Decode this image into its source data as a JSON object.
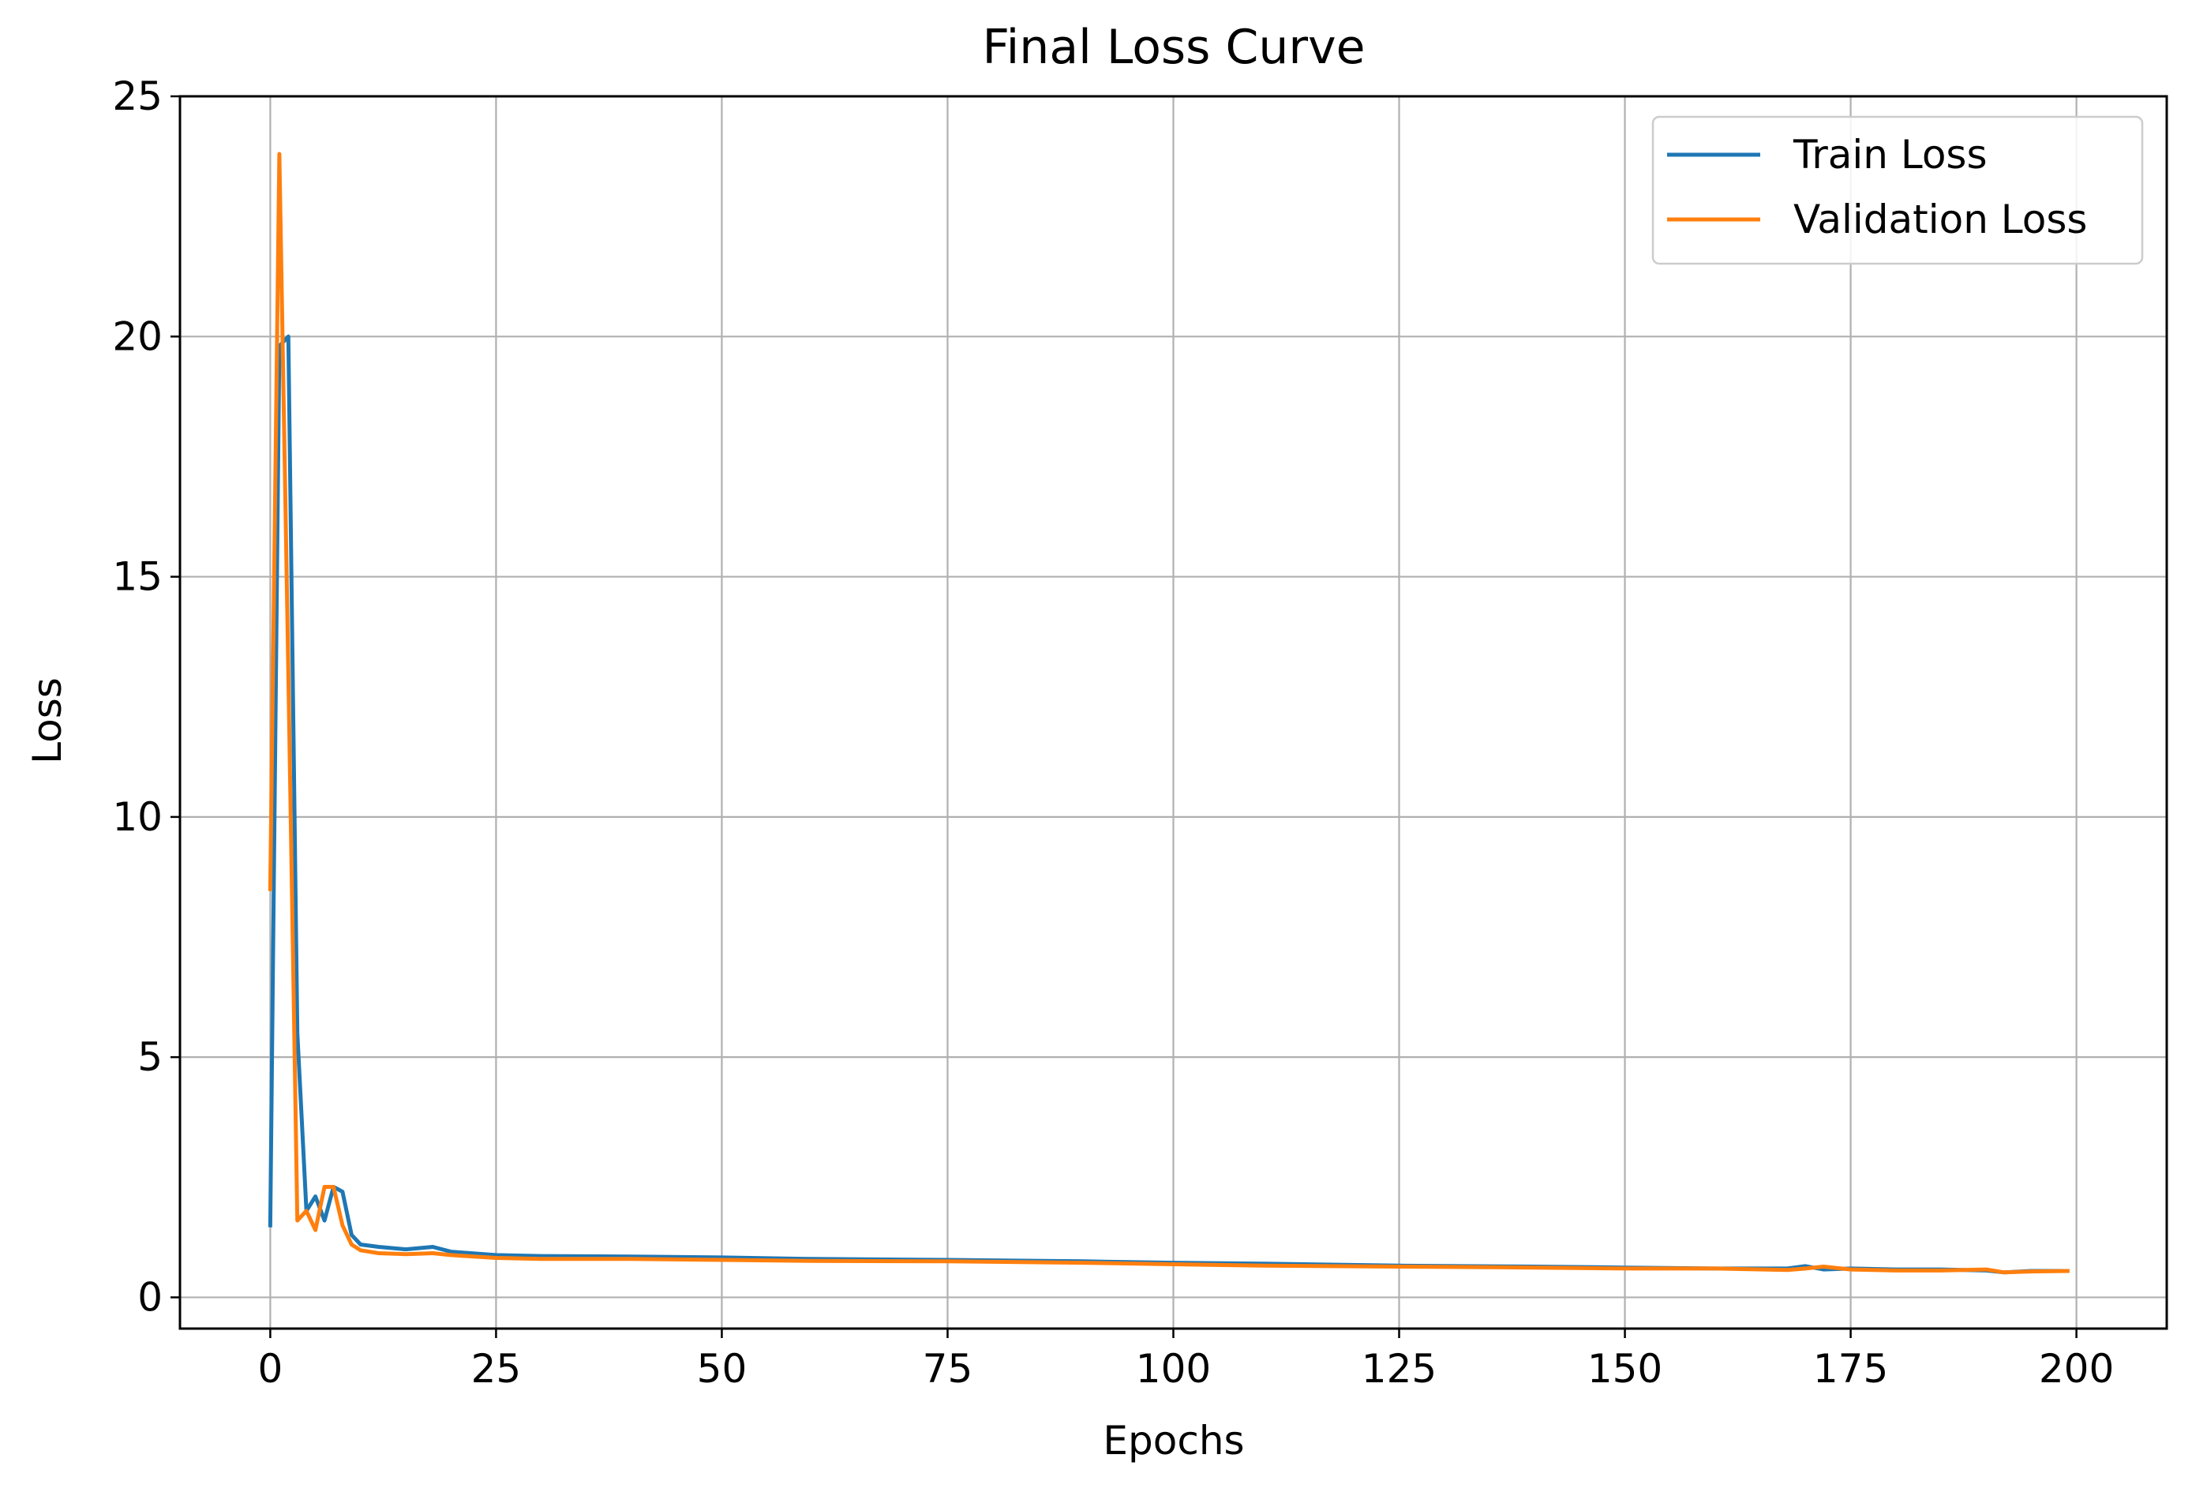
{
  "chart_data": {
    "type": "line",
    "title": "Final Loss Curve",
    "xlabel": "Epochs",
    "ylabel": "Loss",
    "xlim": [
      -10,
      210
    ],
    "ylim": [
      -0.65,
      25
    ],
    "xticks": [
      0,
      25,
      50,
      75,
      100,
      125,
      150,
      175,
      200
    ],
    "yticks": [
      0,
      5,
      10,
      15,
      20,
      25
    ],
    "grid": true,
    "legend_position": "top-right",
    "series": [
      {
        "name": "Train Loss",
        "color": "#1f77b4",
        "x": [
          0,
          1,
          2,
          3,
          4,
          5,
          6,
          7,
          8,
          9,
          10,
          12,
          15,
          18,
          20,
          25,
          30,
          40,
          50,
          60,
          75,
          90,
          100,
          110,
          125,
          140,
          150,
          160,
          168,
          170,
          172,
          175,
          180,
          185,
          190,
          192,
          195,
          199
        ],
        "y": [
          1.5,
          19.8,
          20.0,
          5.5,
          1.8,
          2.1,
          1.6,
          2.3,
          2.2,
          1.3,
          1.1,
          1.05,
          1.0,
          1.05,
          0.95,
          0.88,
          0.86,
          0.85,
          0.83,
          0.8,
          0.78,
          0.75,
          0.72,
          0.7,
          0.66,
          0.64,
          0.62,
          0.6,
          0.6,
          0.65,
          0.58,
          0.6,
          0.58,
          0.58,
          0.56,
          0.52,
          0.55,
          0.55
        ]
      },
      {
        "name": "Validation Loss",
        "color": "#ff7f0e",
        "x": [
          0,
          1,
          2,
          3,
          4,
          5,
          6,
          7,
          8,
          9,
          10,
          12,
          15,
          18,
          20,
          25,
          30,
          40,
          50,
          60,
          75,
          90,
          100,
          110,
          125,
          140,
          150,
          160,
          168,
          170,
          172,
          175,
          180,
          185,
          190,
          192,
          195,
          199
        ],
        "y": [
          8.5,
          23.8,
          13.0,
          1.6,
          1.8,
          1.4,
          2.3,
          2.3,
          1.5,
          1.1,
          0.98,
          0.92,
          0.9,
          0.92,
          0.88,
          0.82,
          0.8,
          0.8,
          0.78,
          0.76,
          0.75,
          0.72,
          0.69,
          0.66,
          0.64,
          0.62,
          0.6,
          0.6,
          0.57,
          0.6,
          0.64,
          0.58,
          0.56,
          0.56,
          0.58,
          0.52,
          0.54,
          0.55
        ]
      }
    ]
  }
}
